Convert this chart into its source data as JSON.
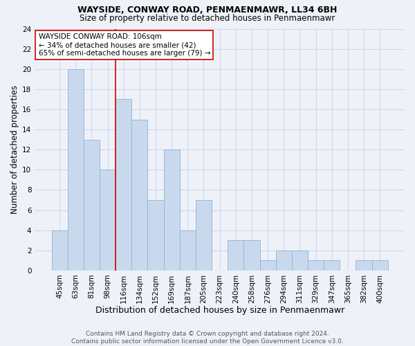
{
  "title": "WAYSIDE, CONWAY ROAD, PENMAENMAWR, LL34 6BH",
  "subtitle": "Size of property relative to detached houses in Penmaenmawr",
  "xlabel": "Distribution of detached houses by size in Penmaenmawr",
  "ylabel": "Number of detached properties",
  "categories": [
    "45sqm",
    "63sqm",
    "81sqm",
    "98sqm",
    "116sqm",
    "134sqm",
    "152sqm",
    "169sqm",
    "187sqm",
    "205sqm",
    "223sqm",
    "240sqm",
    "258sqm",
    "276sqm",
    "294sqm",
    "311sqm",
    "329sqm",
    "347sqm",
    "365sqm",
    "382sqm",
    "400sqm"
  ],
  "values": [
    4,
    20,
    13,
    10,
    17,
    15,
    7,
    12,
    4,
    7,
    0,
    3,
    3,
    1,
    2,
    2,
    1,
    1,
    0,
    1,
    1
  ],
  "bar_color": "#c9d9ed",
  "bar_edgecolor": "#8ab4d4",
  "vline_x": 3.5,
  "vline_color": "#cc0000",
  "annotation_text": "WAYSIDE CONWAY ROAD: 106sqm\n← 34% of detached houses are smaller (42)\n65% of semi-detached houses are larger (79) →",
  "annotation_box_color": "white",
  "annotation_box_edgecolor": "#cc0000",
  "ylim": [
    0,
    24
  ],
  "yticks": [
    0,
    2,
    4,
    6,
    8,
    10,
    12,
    14,
    16,
    18,
    20,
    22,
    24
  ],
  "footer_line1": "Contains HM Land Registry data © Crown copyright and database right 2024.",
  "footer_line2": "Contains public sector information licensed under the Open Government Licence v3.0.",
  "background_color": "#eef2f8",
  "grid_color": "#d0d8e8",
  "title_fontsize": 9,
  "subtitle_fontsize": 8.5,
  "xlabel_fontsize": 9,
  "ylabel_fontsize": 8.5,
  "tick_fontsize": 7.5,
  "annotation_fontsize": 7.5,
  "footer_fontsize": 6.5
}
